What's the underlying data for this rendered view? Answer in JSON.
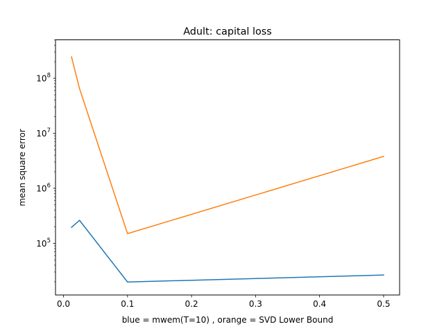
{
  "chart_data": {
    "type": "line",
    "title": "Adult: capital loss",
    "xlabel": "blue = mwem(T=10) , orange = SVD Lower Bound",
    "ylabel": "mean square error",
    "xlim": [
      -0.0125,
      0.525
    ],
    "ylim": [
      11500,
      500000000
    ],
    "yscale": "log",
    "grid": false,
    "x_ticks": [
      {
        "value": 0.0,
        "label": "0.0"
      },
      {
        "value": 0.1,
        "label": "0.1"
      },
      {
        "value": 0.2,
        "label": "0.2"
      },
      {
        "value": 0.3,
        "label": "0.3"
      },
      {
        "value": 0.4,
        "label": "0.4"
      },
      {
        "value": 0.5,
        "label": "0.5"
      }
    ],
    "y_ticks": [
      {
        "value": 100000,
        "base": "10",
        "exp": "5"
      },
      {
        "value": 1000000,
        "base": "10",
        "exp": "6"
      },
      {
        "value": 10000000,
        "base": "10",
        "exp": "7"
      },
      {
        "value": 100000000,
        "base": "10",
        "exp": "8"
      }
    ],
    "series": [
      {
        "color": "#1f77b4",
        "x": [
          0.0125,
          0.025,
          0.1,
          0.5
        ],
        "y": [
          195000,
          262000,
          19800,
          26500
        ]
      },
      {
        "color": "#ff7f0e",
        "x": [
          0.0125,
          0.025,
          0.1,
          0.5
        ],
        "y": [
          245000000,
          65000000,
          150000,
          3800000
        ]
      }
    ]
  }
}
